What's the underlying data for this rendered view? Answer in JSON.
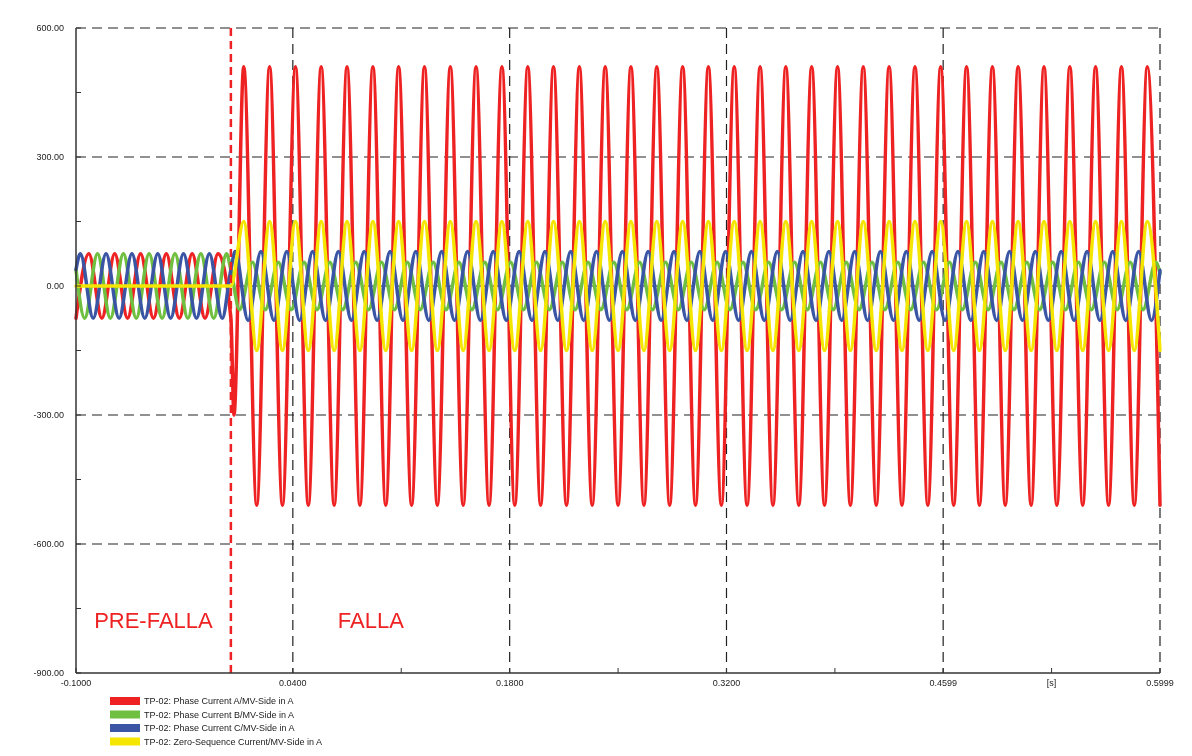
{
  "chart_data": {
    "type": "line",
    "xlabel": "[s]",
    "annotations": [
      "PRE-FALLA",
      "FALLA"
    ],
    "xlim": [
      -0.1,
      0.5999
    ],
    "xticks": [
      {
        "value": -0.1,
        "label": "-0.1000"
      },
      {
        "value": 0.04,
        "label": "0.0400"
      },
      {
        "value": 0.11,
        "label": null
      },
      {
        "value": 0.18,
        "label": "0.1800"
      },
      {
        "value": 0.25,
        "label": null
      },
      {
        "value": 0.32,
        "label": "0.3200"
      },
      {
        "value": 0.39,
        "label": null
      },
      {
        "value": 0.4599,
        "label": "0.4599"
      },
      {
        "value": 0.5299,
        "label": null
      },
      {
        "value": 0.5999,
        "label": "0.5999"
      }
    ],
    "ylim": [
      -900,
      600
    ],
    "yticks": [
      {
        "value": -900,
        "label": "-900.00"
      },
      {
        "value": -750,
        "label": null
      },
      {
        "value": -600,
        "label": "-600.00"
      },
      {
        "value": -450,
        "label": null
      },
      {
        "value": -300,
        "label": "-300.00"
      },
      {
        "value": -150,
        "label": null
      },
      {
        "value": 0,
        "label": "0.00"
      },
      {
        "value": 150,
        "label": null
      },
      {
        "value": 300,
        "label": "300.00"
      },
      {
        "value": 450,
        "label": null
      },
      {
        "value": 600,
        "label": "600.00"
      }
    ],
    "grid": true,
    "legend": "bottom",
    "line_style": "solid",
    "ref_lines": [
      {
        "axis": "x",
        "value": 0,
        "color": "#ee2222",
        "line_style": "dashed"
      }
    ],
    "series": [
      {
        "name": "TP-02: Phase Current A/MV-Side in A",
        "color": "#ee2222",
        "x": [
          -0.1,
          -0.0917,
          -0.0833,
          -0.075,
          -0.0667,
          -0.0583,
          -0.05,
          -0.0417,
          -0.0333,
          -0.025,
          -0.0167,
          -0.0083,
          0,
          0.002,
          0.0083,
          0.0167,
          0.025,
          0.0333,
          0.0417,
          0.05,
          0.0583,
          0.0667,
          0.075,
          0.0833,
          0.0917,
          0.1,
          0.1083,
          0.1167,
          0.125,
          0.1333,
          0.1417,
          0.15,
          0.1583,
          0.1667,
          0.175,
          0.1833,
          0.1917,
          0.2,
          0.2083,
          0.2167,
          0.225,
          0.2333,
          0.2417,
          0.25,
          0.2583,
          0.2667,
          0.275,
          0.2833,
          0.2917,
          0.3,
          0.3083,
          0.3167,
          0.325,
          0.3333,
          0.3417,
          0.35,
          0.3583,
          0.3667,
          0.375,
          0.3833,
          0.3917,
          0.4,
          0.4083,
          0.4167,
          0.425,
          0.4333,
          0.4417,
          0.45,
          0.4583,
          0.4667,
          0.475,
          0.4833,
          0.4917,
          0.5,
          0.5083,
          0.5167,
          0.525,
          0.5333,
          0.5417,
          0.55,
          0.5583,
          0.5667,
          0.575,
          0.5833,
          0.5917,
          0.5999
        ],
        "values": [
          -75,
          75,
          -75,
          75,
          -75,
          75,
          -75,
          75,
          -75,
          75,
          -75,
          75,
          -75,
          -300,
          510,
          -510,
          510,
          -510,
          510,
          -510,
          510,
          -510,
          510,
          -510,
          510,
          -510,
          510,
          -510,
          510,
          -510,
          510,
          -510,
          510,
          -510,
          510,
          -510,
          510,
          -510,
          510,
          -510,
          510,
          -510,
          510,
          -510,
          510,
          -510,
          510,
          -510,
          510,
          -510,
          510,
          -510,
          510,
          -510,
          510,
          -510,
          510,
          -510,
          510,
          -510,
          510,
          -510,
          510,
          -510,
          510,
          -510,
          510,
          -510,
          510,
          -510,
          510,
          -510,
          510,
          -510,
          510,
          -510,
          510,
          -510,
          510,
          -510,
          510,
          -510,
          510,
          -510,
          510,
          -510
        ]
      },
      {
        "name": "TP-02: Phase Current B/MV-Side in A",
        "color": "#6fbf40",
        "x": [
          -0.1,
          -0.0944,
          -0.0861,
          -0.0778,
          -0.0694,
          -0.0611,
          -0.0528,
          -0.0444,
          -0.0361,
          -0.0278,
          -0.0194,
          -0.0111,
          -0.0028,
          0,
          0.0056,
          0.0139,
          0.0222,
          0.0306,
          0.0389,
          0.0472,
          0.0556,
          0.0639,
          0.0722,
          0.0806,
          0.0889,
          0.0972,
          0.1056,
          0.1139,
          0.1222,
          0.1306,
          0.1389,
          0.1472,
          0.1556,
          0.1639,
          0.1722,
          0.1806,
          0.1889,
          0.1972,
          0.2056,
          0.2139,
          0.2222,
          0.2306,
          0.2389,
          0.2472,
          0.2556,
          0.2639,
          0.2722,
          0.2806,
          0.2889,
          0.2972,
          0.3056,
          0.3139,
          0.3222,
          0.3306,
          0.3389,
          0.3472,
          0.3556,
          0.3639,
          0.3722,
          0.3806,
          0.3889,
          0.3972,
          0.4056,
          0.4139,
          0.4222,
          0.4306,
          0.4389,
          0.4472,
          0.4556,
          0.4639,
          0.4722,
          0.4806,
          0.4889,
          0.4972,
          0.5056,
          0.5139,
          0.5222,
          0.5306,
          0.5389,
          0.5472,
          0.5556,
          0.5639,
          0.5722,
          0.5806,
          0.5889,
          0.5972,
          0.5999
        ],
        "values": [
          38,
          -75,
          75,
          -75,
          75,
          -75,
          75,
          -75,
          75,
          -75,
          75,
          -75,
          75,
          38,
          -55,
          55,
          -55,
          55,
          -55,
          55,
          -55,
          55,
          -55,
          55,
          -55,
          55,
          -55,
          55,
          -55,
          55,
          -55,
          55,
          -55,
          55,
          -55,
          55,
          -55,
          55,
          -55,
          55,
          -55,
          55,
          -55,
          55,
          -55,
          55,
          -55,
          55,
          -55,
          55,
          -55,
          55,
          -55,
          55,
          -55,
          55,
          -55,
          55,
          -55,
          55,
          -55,
          55,
          -55,
          55,
          -55,
          55,
          -55,
          55,
          -55,
          55,
          -55,
          55,
          -55,
          55,
          -55,
          55,
          -55,
          55,
          -55,
          55,
          -55,
          55,
          -55,
          55,
          -55,
          55,
          29
        ]
      },
      {
        "name": "TP-02: Phase Current C/MV-Side in A",
        "color": "#3a55a4",
        "x": [
          -0.1,
          -0.0972,
          -0.0889,
          -0.0806,
          -0.0722,
          -0.0639,
          -0.0556,
          -0.0472,
          -0.0389,
          -0.0306,
          -0.0222,
          -0.0139,
          -0.0056,
          0,
          0.0028,
          0.0111,
          0.0194,
          0.0278,
          0.0361,
          0.0444,
          0.0528,
          0.0611,
          0.0694,
          0.0778,
          0.0861,
          0.0944,
          0.1028,
          0.1111,
          0.1194,
          0.1278,
          0.1361,
          0.1444,
          0.1528,
          0.1611,
          0.1694,
          0.1778,
          0.1861,
          0.1944,
          0.2028,
          0.2111,
          0.2194,
          0.2278,
          0.2361,
          0.2444,
          0.2528,
          0.2611,
          0.2694,
          0.2778,
          0.2861,
          0.2944,
          0.3028,
          0.3111,
          0.3194,
          0.3278,
          0.3361,
          0.3444,
          0.3528,
          0.3611,
          0.3694,
          0.3778,
          0.3861,
          0.3944,
          0.4028,
          0.4111,
          0.4194,
          0.4278,
          0.4361,
          0.4444,
          0.4528,
          0.4611,
          0.4694,
          0.4778,
          0.4861,
          0.4944,
          0.5028,
          0.5111,
          0.5194,
          0.5278,
          0.5361,
          0.5444,
          0.5528,
          0.5611,
          0.5694,
          0.5778,
          0.5861,
          0.5944,
          0.5999
        ],
        "values": [
          38,
          75,
          -75,
          75,
          -75,
          75,
          -75,
          75,
          -75,
          75,
          -75,
          75,
          -75,
          38,
          80,
          -80,
          80,
          -80,
          80,
          -80,
          80,
          -80,
          80,
          -80,
          80,
          -80,
          80,
          -80,
          80,
          -80,
          80,
          -80,
          80,
          -80,
          80,
          -80,
          80,
          -80,
          80,
          -80,
          80,
          -80,
          80,
          -80,
          80,
          -80,
          80,
          -80,
          80,
          -80,
          80,
          -80,
          80,
          -80,
          80,
          -80,
          80,
          -80,
          80,
          -80,
          80,
          -80,
          80,
          -80,
          80,
          -80,
          80,
          -80,
          80,
          -80,
          80,
          -80,
          80,
          -80,
          80,
          -80,
          80,
          -80,
          80,
          -80,
          80,
          -80,
          80,
          -80,
          80,
          -80,
          36
        ]
      },
      {
        "name": "TP-02: Zero-Sequence Current/MV-Side in A",
        "color": "#f5e600",
        "x": [
          -0.1,
          0,
          0.0083,
          0.0167,
          0.025,
          0.0333,
          0.0417,
          0.05,
          0.0583,
          0.0667,
          0.075,
          0.0833,
          0.0917,
          0.1,
          0.1083,
          0.1167,
          0.125,
          0.1333,
          0.1417,
          0.15,
          0.1583,
          0.1667,
          0.175,
          0.1833,
          0.1917,
          0.2,
          0.2083,
          0.2167,
          0.225,
          0.2333,
          0.2417,
          0.25,
          0.2583,
          0.2667,
          0.275,
          0.2833,
          0.2917,
          0.3,
          0.3083,
          0.3167,
          0.325,
          0.3333,
          0.3417,
          0.35,
          0.3583,
          0.3667,
          0.375,
          0.3833,
          0.3917,
          0.4,
          0.4083,
          0.4167,
          0.425,
          0.4333,
          0.4417,
          0.45,
          0.4583,
          0.4667,
          0.475,
          0.4833,
          0.4917,
          0.5,
          0.5083,
          0.5167,
          0.525,
          0.5333,
          0.5417,
          0.55,
          0.5583,
          0.5667,
          0.575,
          0.5833,
          0.5917,
          0.5999
        ],
        "values": [
          0,
          0,
          150,
          -150,
          150,
          -150,
          150,
          -150,
          150,
          -150,
          150,
          -150,
          150,
          -150,
          150,
          -150,
          150,
          -150,
          150,
          -150,
          150,
          -150,
          150,
          -150,
          150,
          -150,
          150,
          -150,
          150,
          -150,
          150,
          -150,
          150,
          -150,
          150,
          -150,
          150,
          -150,
          150,
          -150,
          150,
          -150,
          150,
          -150,
          150,
          -150,
          150,
          -150,
          150,
          -150,
          150,
          -150,
          150,
          -150,
          150,
          -150,
          150,
          -150,
          150,
          -150,
          150,
          -150,
          150,
          -150,
          150,
          -150,
          150,
          -150,
          150,
          -150,
          150,
          -150,
          150,
          -150
        ]
      }
    ]
  }
}
